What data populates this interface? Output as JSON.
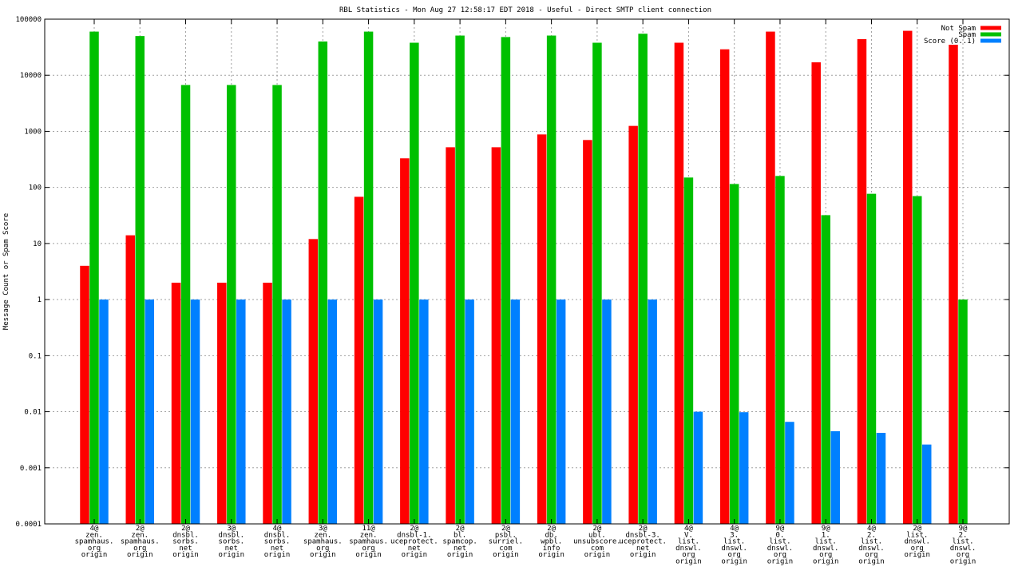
{
  "colors": {
    "not_spam": "#ff0000",
    "spam": "#00c000",
    "score": "#0080ff",
    "grid": "#a0a0a0",
    "axis": "#000000"
  },
  "chart_data": {
    "type": "bar",
    "title": "RBL Statistics - Mon Aug 27 12:58:17 EDT 2018 - Useful - Direct SMTP client connection",
    "ylabel": "Message Count or Spam Score",
    "xlabel": "",
    "yscale": "log",
    "ylim": [
      0.0001,
      100000
    ],
    "yticks": [
      {
        "value": 0.0001,
        "label": "0.0001"
      },
      {
        "value": 0.001,
        "label": "0.001"
      },
      {
        "value": 0.01,
        "label": "0.01"
      },
      {
        "value": 0.1,
        "label": "0.1"
      },
      {
        "value": 1,
        "label": "1"
      },
      {
        "value": 10,
        "label": "10"
      },
      {
        "value": 100,
        "label": "100"
      },
      {
        "value": 1000,
        "label": "1000"
      },
      {
        "value": 10000,
        "label": "10000"
      },
      {
        "value": 100000,
        "label": "100000"
      }
    ],
    "grid": true,
    "legend_position": "top-right",
    "categories": [
      [
        "4@",
        "zen.",
        "spamhaus.",
        "org",
        "origin"
      ],
      [
        "2@",
        "zen.",
        "spamhaus.",
        "org",
        "origin"
      ],
      [
        "2@",
        "dnsbl.",
        "sorbs.",
        "net",
        "origin"
      ],
      [
        "3@",
        "dnsbl.",
        "sorbs.",
        "net",
        "origin"
      ],
      [
        "4@",
        "dnsbl.",
        "sorbs.",
        "net",
        "origin"
      ],
      [
        "3@",
        "zen.",
        "spamhaus.",
        "org",
        "origin"
      ],
      [
        "11@",
        "zen.",
        "spamhaus.",
        "org",
        "origin"
      ],
      [
        "2@",
        "dnsbl-1.",
        "uceprotect.",
        "net",
        "origin"
      ],
      [
        "2@",
        "bl.",
        "spamcop.",
        "net",
        "origin"
      ],
      [
        "2@",
        "psbl.",
        "surriel.",
        "com",
        "origin"
      ],
      [
        "2@",
        "db.",
        "wpbl.",
        "info",
        "origin"
      ],
      [
        "2@",
        "ubl.",
        "unsubscore.",
        "com",
        "origin"
      ],
      [
        "2@",
        "dnsbl-3.",
        "uceprotect.",
        "net",
        "origin"
      ],
      [
        "4@",
        "V.",
        "list.",
        "dnswl.",
        "org",
        "origin"
      ],
      [
        "4@",
        "3.",
        "list.",
        "dnswl.",
        "org",
        "origin"
      ],
      [
        "9@",
        "0.",
        "list.",
        "dnswl.",
        "org",
        "origin"
      ],
      [
        "9@",
        "1.",
        "list.",
        "dnswl.",
        "org",
        "origin"
      ],
      [
        "4@",
        "2.",
        "list.",
        "dnswl.",
        "org",
        "origin"
      ],
      [
        "2@",
        "list.",
        "dnswl.",
        "org",
        "origin"
      ],
      [
        "9@",
        "2.",
        "list.",
        "dnswl.",
        "org",
        "origin"
      ]
    ],
    "series": [
      {
        "name": "Not Spam",
        "color": "#ff0000",
        "values": [
          4,
          14,
          2,
          2,
          2,
          12,
          68,
          330,
          520,
          520,
          880,
          700,
          1250,
          38000,
          29000,
          60000,
          17000,
          44000,
          62000,
          35000
        ]
      },
      {
        "name": "Spam",
        "color": "#00c000",
        "values": [
          60000,
          50000,
          6700,
          6700,
          6700,
          40000,
          60000,
          38000,
          51000,
          48000,
          51000,
          38000,
          55000,
          150,
          115,
          160,
          32,
          77,
          70,
          1
        ]
      },
      {
        "name": "Score (0..1)",
        "color": "#0080ff",
        "values": [
          1,
          1,
          1,
          1,
          1,
          1,
          1,
          1,
          1,
          1,
          1,
          1,
          1,
          0.01,
          0.0098,
          0.0066,
          0.0045,
          0.0042,
          0.0026,
          null
        ]
      }
    ]
  }
}
